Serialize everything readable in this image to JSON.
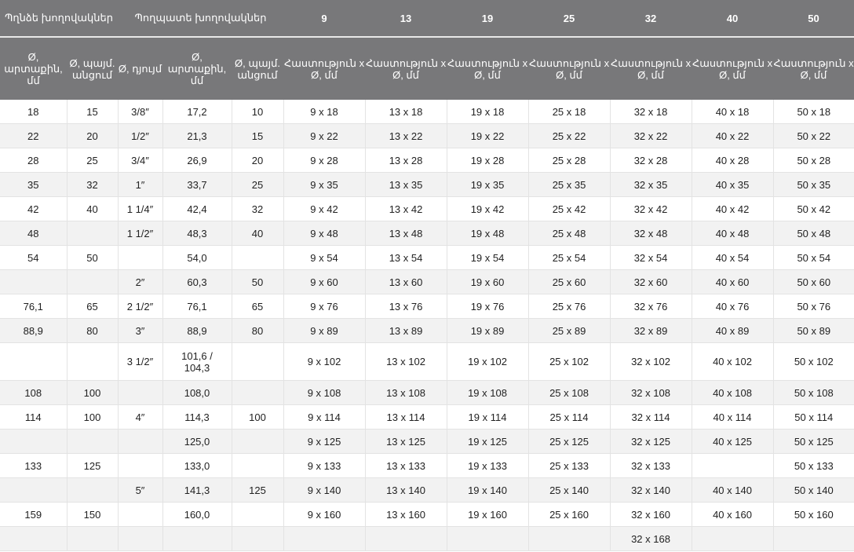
{
  "header": {
    "group_left": "Պղնձե խողովակներ",
    "group_mid": "Պողպատե խողովակներ",
    "sizes": [
      "9",
      "13",
      "19",
      "25",
      "32",
      "40",
      "50"
    ],
    "sub": [
      "Ø, արտաքին, մմ",
      "Ø, պայմ. անցում",
      "Ø, դյույմ",
      "Ø, արտաքին, մմ",
      "Ø, պայմ. անցում"
    ],
    "thickness_label": "Հաստություն x Ø, մմ"
  },
  "rows": [
    [
      "18",
      "15",
      "3/8″",
      "17,2",
      "10",
      "9 x 18",
      "13 x 18",
      "19 x 18",
      "25 x 18",
      "32 x 18",
      "40 x 18",
      "50 x 18"
    ],
    [
      "22",
      "20",
      "1/2″",
      "21,3",
      "15",
      "9 x 22",
      "13 x 22",
      "19 x 22",
      "25 x 22",
      "32 x 22",
      "40 x 22",
      "50 x 22"
    ],
    [
      "28",
      "25",
      "3/4″",
      "26,9",
      "20",
      "9 x 28",
      "13 x 28",
      "19 x 28",
      "25 x 28",
      "32 x 28",
      "40 x 28",
      "50 x 28"
    ],
    [
      "35",
      "32",
      "1″",
      "33,7",
      "25",
      "9 x 35",
      "13 x 35",
      "19 x 35",
      "25 x 35",
      "32 x 35",
      "40 x 35",
      "50 x 35"
    ],
    [
      "42",
      "40",
      "1 1/4″",
      "42,4",
      "32",
      "9 x 42",
      "13 x 42",
      "19 x 42",
      "25 x 42",
      "32 x 42",
      "40 x 42",
      "50 x 42"
    ],
    [
      "48",
      "",
      "1 1/2″",
      "48,3",
      "40",
      "9 x 48",
      "13 x 48",
      "19 x 48",
      "25 x 48",
      "32 x 48",
      "40 x 48",
      "50 x 48"
    ],
    [
      "54",
      "50",
      "",
      "54,0",
      "",
      "9 x 54",
      "13 x 54",
      "19 x 54",
      "25 x 54",
      "32 x 54",
      "40 x 54",
      "50 x 54"
    ],
    [
      "",
      "",
      "2″",
      "60,3",
      "50",
      "9 x 60",
      "13 x 60",
      "19 x 60",
      "25 x 60",
      "32 x 60",
      "40 x 60",
      "50 x 60"
    ],
    [
      "76,1",
      "65",
      "2 1/2″",
      "76,1",
      "65",
      "9 x 76",
      "13 x 76",
      "19 x 76",
      "25 x 76",
      "32 x 76",
      "40 x 76",
      "50 x 76"
    ],
    [
      "88,9",
      "80",
      "3″",
      "88,9",
      "80",
      "9 x 89",
      "13 x 89",
      "19 x 89",
      "25 x 89",
      "32 x 89",
      "40 x 89",
      "50 x 89"
    ],
    [
      "",
      "",
      "3 1/2″",
      "101,6 / 104,3",
      "",
      "9 x 102",
      "13 x 102",
      "19 x 102",
      "25 x 102",
      "32 x 102",
      "40 x 102",
      "50 x 102"
    ],
    [
      "108",
      "100",
      "",
      "108,0",
      "",
      "9 x 108",
      "13 x 108",
      "19 x 108",
      "25 x 108",
      "32 x 108",
      "40 x 108",
      "50 x 108"
    ],
    [
      "114",
      "100",
      "4″",
      "114,3",
      "100",
      "9 x 114",
      "13 x 114",
      "19 x 114",
      "25 x 114",
      "32 x 114",
      "40 x 114",
      "50 x 114"
    ],
    [
      "",
      "",
      "",
      "125,0",
      "",
      "9 x 125",
      "13 x 125",
      "19 x 125",
      "25 x 125",
      "32 x 125",
      "40 x 125",
      "50 x 125"
    ],
    [
      "133",
      "125",
      "",
      "133,0",
      "",
      "9 x 133",
      "13 x 133",
      "19 x 133",
      "25 x 133",
      "32 x 133",
      "",
      "50 x 133"
    ],
    [
      "",
      "",
      "5″",
      "141,3",
      "125",
      "9 x 140",
      "13 x 140",
      "19 x 140",
      "25 x 140",
      "32 x 140",
      "40 x 140",
      "50 x 140"
    ],
    [
      "159",
      "150",
      "",
      "160,0",
      "",
      "9 x 160",
      "13 x 160",
      "19 x 160",
      "25 x 160",
      "32 x 160",
      "40 x 160",
      "50 x 160"
    ],
    [
      "",
      "",
      "",
      "",
      "",
      "",
      "",
      "",
      "",
      "32 x 168",
      "",
      ""
    ]
  ]
}
